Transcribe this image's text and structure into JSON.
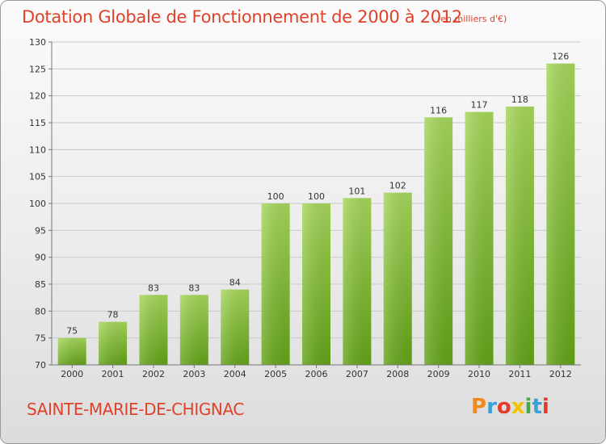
{
  "header": {
    "title": "Dotation Globale de Fonctionnement de 2000 à 2012",
    "unit": "(en milliers d'€)"
  },
  "footer": {
    "commune": "SAINTE-MARIE-DE-CHIGNAC",
    "logo_text": "Proxiti"
  },
  "colors": {
    "accent": "#e0412a",
    "bar_light": "#a6d65a",
    "bar_dark": "#62a317"
  },
  "chart_data": {
    "type": "bar",
    "title": "Dotation Globale de Fonctionnement de 2000 à 2012",
    "subtitle": "(en milliers d'€)",
    "xlabel": "",
    "ylabel": "",
    "categories": [
      "2000",
      "2001",
      "2002",
      "2003",
      "2004",
      "2005",
      "2006",
      "2007",
      "2008",
      "2009",
      "2010",
      "2011",
      "2012"
    ],
    "values": [
      75,
      78,
      83,
      83,
      84,
      100,
      100,
      101,
      102,
      116,
      117,
      118,
      126
    ],
    "ylim": [
      70,
      130
    ],
    "yticks": [
      70,
      75,
      80,
      85,
      90,
      95,
      100,
      105,
      110,
      115,
      120,
      125,
      130
    ],
    "grid": true
  }
}
